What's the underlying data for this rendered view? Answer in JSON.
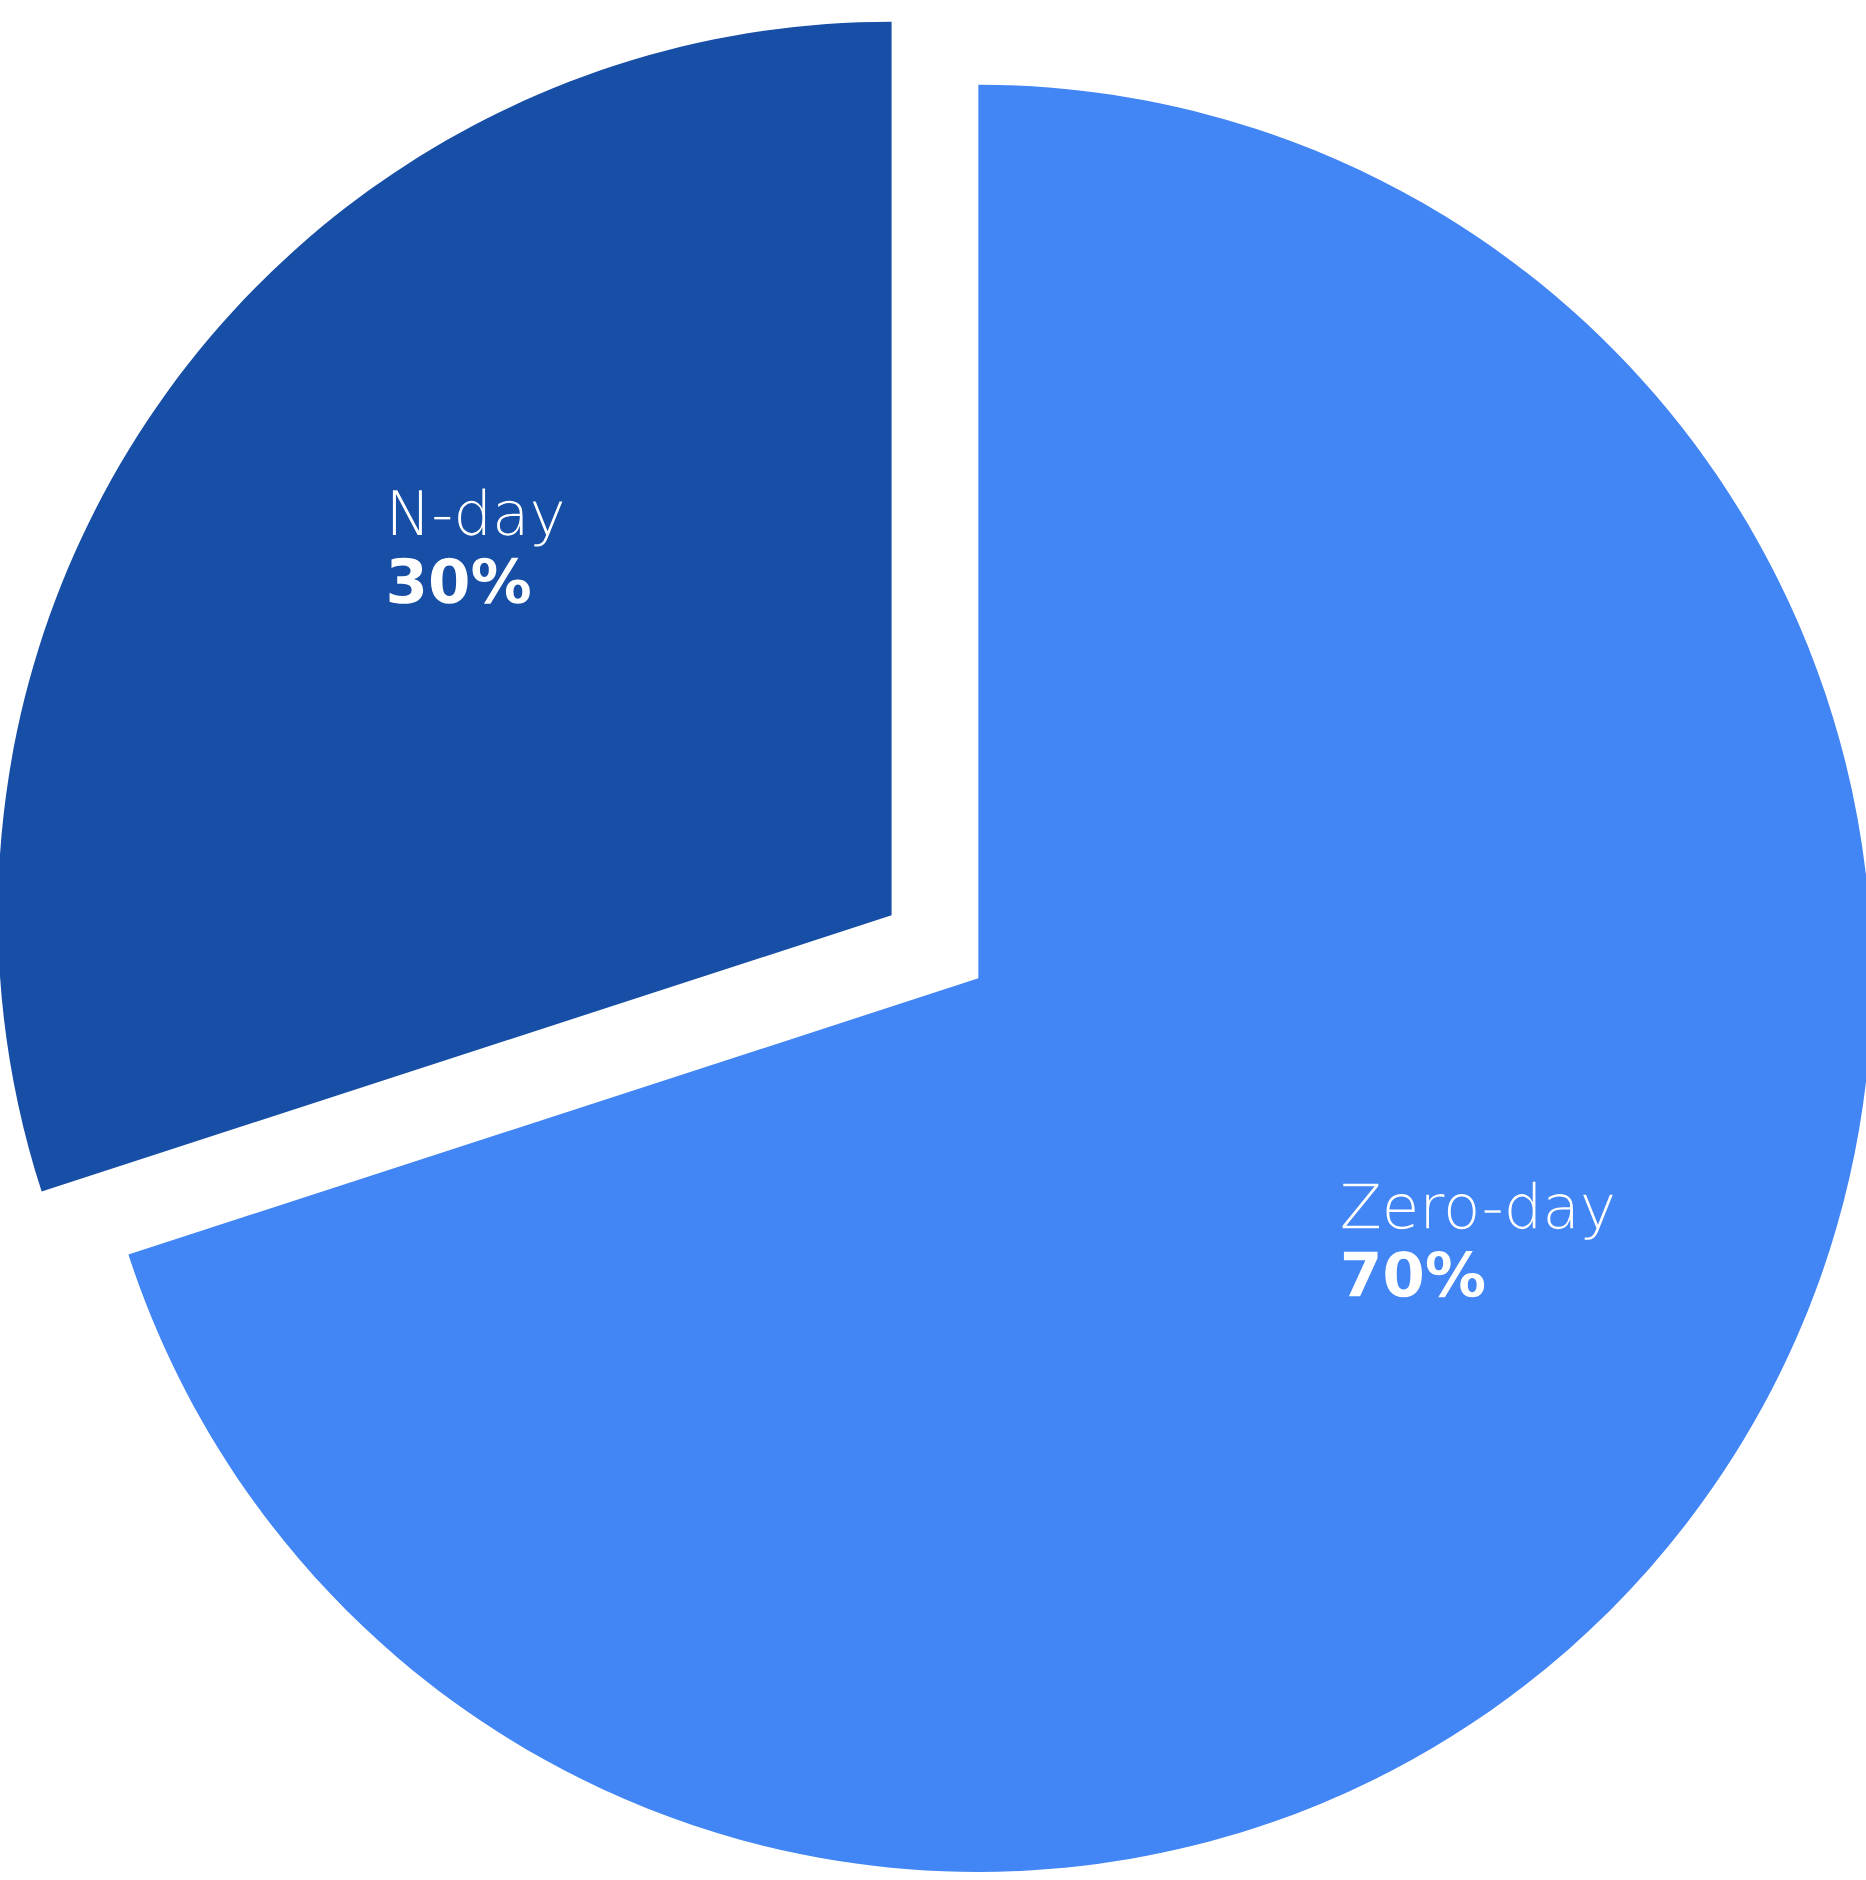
{
  "chart_data": {
    "type": "pie",
    "categories": [
      "Zero-day",
      "N-day"
    ],
    "values": [
      70,
      30
    ],
    "colors": [
      "#4285f4",
      "#174ea6"
    ],
    "value_labels": [
      "70%",
      "30%"
    ]
  }
}
